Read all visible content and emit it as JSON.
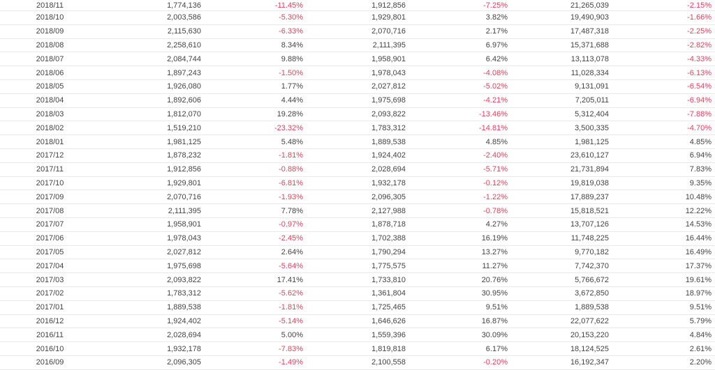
{
  "rows": [
    [
      "2018/11",
      "1,774,136",
      "-11.45%",
      "1,912,856",
      "-7.25%",
      "21,265,039",
      "-2.15%"
    ],
    [
      "2018/10",
      "2,003,586",
      "-5.30%",
      "1,929,801",
      "3.82%",
      "19,490,903",
      "-1.66%"
    ],
    [
      "2018/09",
      "2,115,630",
      "-6.33%",
      "2,070,716",
      "2.17%",
      "17,487,318",
      "-2.25%"
    ],
    [
      "2018/08",
      "2,258,610",
      "8.34%",
      "2,111,395",
      "6.97%",
      "15,371,688",
      "-2.82%"
    ],
    [
      "2018/07",
      "2,084,744",
      "9.88%",
      "1,958,901",
      "6.42%",
      "13,113,078",
      "-4.33%"
    ],
    [
      "2018/06",
      "1,897,243",
      "-1.50%",
      "1,978,043",
      "-4.08%",
      "11,028,334",
      "-6.13%"
    ],
    [
      "2018/05",
      "1,926,080",
      "1.77%",
      "2,027,812",
      "-5.02%",
      "9,131,091",
      "-6.54%"
    ],
    [
      "2018/04",
      "1,892,606",
      "4.44%",
      "1,975,698",
      "-4.21%",
      "7,205,011",
      "-6.94%"
    ],
    [
      "2018/03",
      "1,812,070",
      "19.28%",
      "2,093,822",
      "-13.46%",
      "5,312,404",
      "-7.88%"
    ],
    [
      "2018/02",
      "1,519,210",
      "-23.32%",
      "1,783,312",
      "-14.81%",
      "3,500,335",
      "-4.70%"
    ],
    [
      "2018/01",
      "1,981,125",
      "5.48%",
      "1,889,538",
      "4.85%",
      "1,981,125",
      "4.85%"
    ],
    [
      "2017/12",
      "1,878,232",
      "-1.81%",
      "1,924,402",
      "-2.40%",
      "23,610,127",
      "6.94%"
    ],
    [
      "2017/11",
      "1,912,856",
      "-0.88%",
      "2,028,694",
      "-5.71%",
      "21,731,894",
      "7.83%"
    ],
    [
      "2017/10",
      "1,929,801",
      "-6.81%",
      "1,932,178",
      "-0.12%",
      "19,819,038",
      "9.35%"
    ],
    [
      "2017/09",
      "2,070,716",
      "-1.93%",
      "2,096,305",
      "-1.22%",
      "17,889,237",
      "10.48%"
    ],
    [
      "2017/08",
      "2,111,395",
      "7.78%",
      "2,127,988",
      "-0.78%",
      "15,818,521",
      "12.22%"
    ],
    [
      "2017/07",
      "1,958,901",
      "-0.97%",
      "1,878,718",
      "4.27%",
      "13,707,126",
      "14.53%"
    ],
    [
      "2017/06",
      "1,978,043",
      "-2.45%",
      "1,702,388",
      "16.19%",
      "11,748,225",
      "16.44%"
    ],
    [
      "2017/05",
      "2,027,812",
      "2.64%",
      "1,790,294",
      "13.27%",
      "9,770,182",
      "16.49%"
    ],
    [
      "2017/04",
      "1,975,698",
      "-5.64%",
      "1,775,575",
      "11.27%",
      "7,742,370",
      "17.37%"
    ],
    [
      "2017/03",
      "2,093,822",
      "17.41%",
      "1,733,810",
      "20.76%",
      "5,766,672",
      "19.61%"
    ],
    [
      "2017/02",
      "1,783,312",
      "-5.62%",
      "1,361,804",
      "30.95%",
      "3,672,850",
      "18.97%"
    ],
    [
      "2017/01",
      "1,889,538",
      "-1.81%",
      "1,725,465",
      "9.51%",
      "1,889,538",
      "9.51%"
    ],
    [
      "2016/12",
      "1,924,402",
      "-5.14%",
      "1,646,626",
      "16.87%",
      "22,077,622",
      "5.79%"
    ],
    [
      "2016/11",
      "2,028,694",
      "5.00%",
      "1,559,396",
      "30.09%",
      "20,153,220",
      "4.84%"
    ],
    [
      "2016/10",
      "1,932,178",
      "-7.83%",
      "1,819,818",
      "6.17%",
      "18,124,525",
      "2.61%"
    ],
    [
      "2016/09",
      "2,096,305",
      "-1.49%",
      "2,100,558",
      "-0.20%",
      "16,192,347",
      "2.20%"
    ]
  ],
  "colors": {
    "negative": "#e8415a",
    "text": "#444444",
    "row_border": "#e8e8e8"
  }
}
